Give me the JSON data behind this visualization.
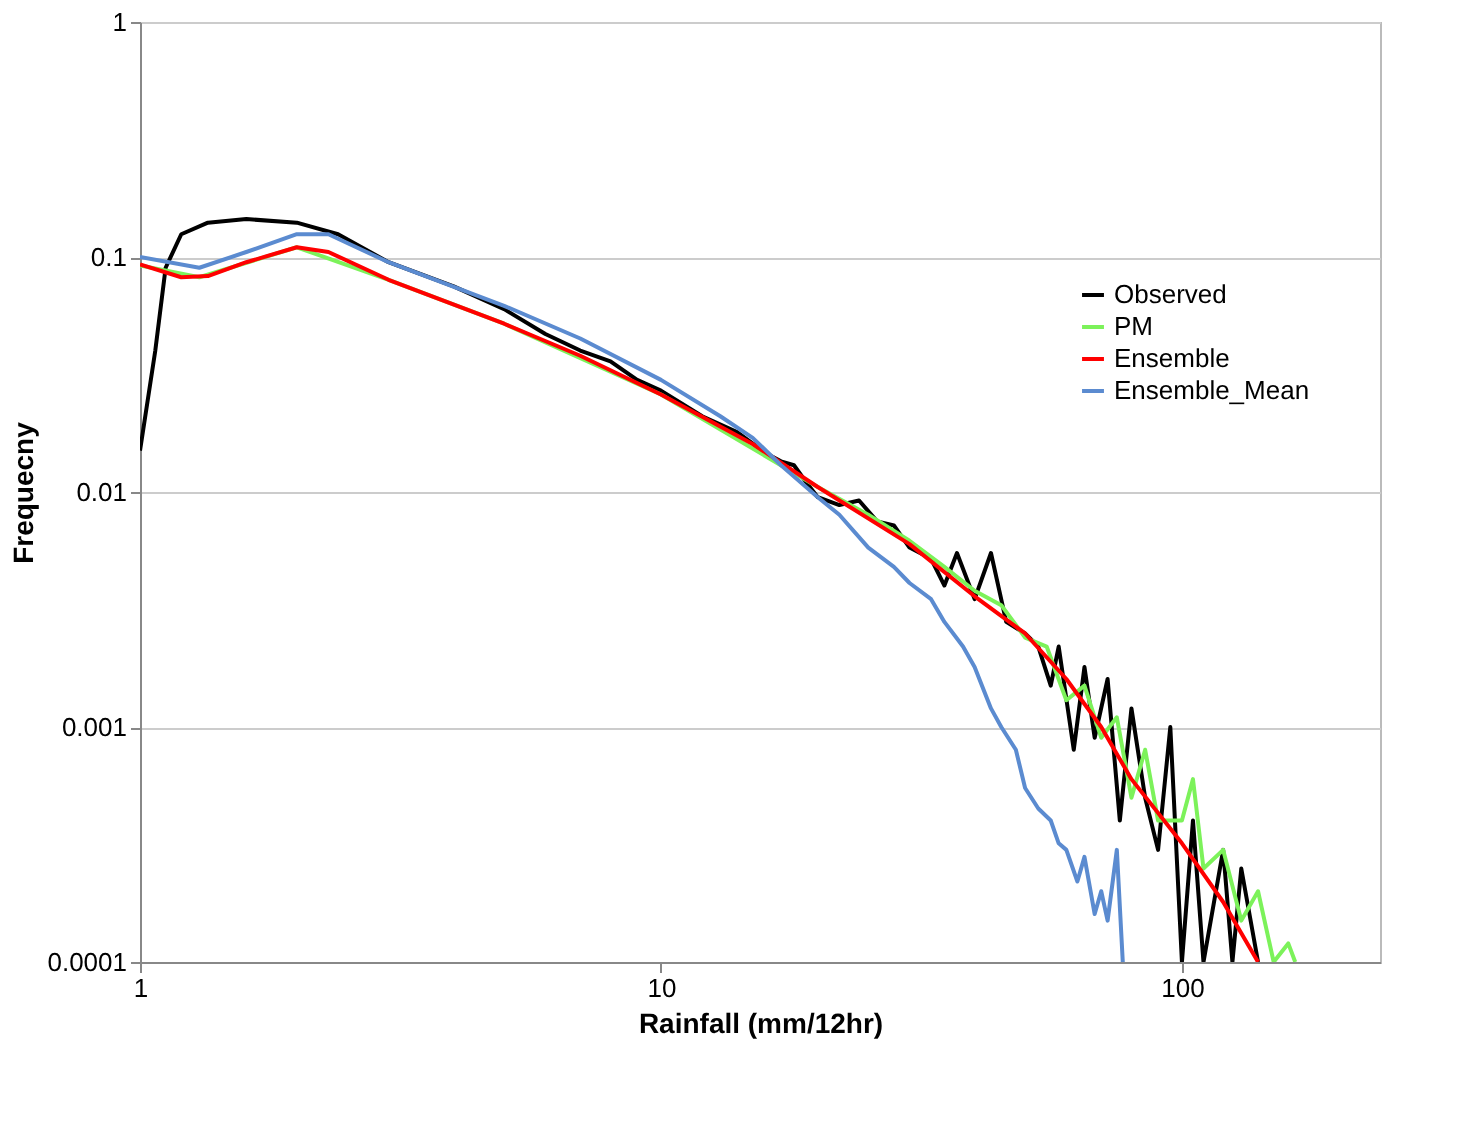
{
  "chart_data": {
    "type": "line",
    "xlabel": "Rainfall (mm/12hr)",
    "ylabel": "Frequecny",
    "log": "xy",
    "xlim": [
      1,
      240
    ],
    "xticks": [
      1,
      10,
      100
    ],
    "ylim": [
      0.0001,
      1
    ],
    "yticks": [
      0.0001,
      0.001,
      0.01,
      0.1,
      1
    ],
    "grid": "y",
    "legend": "right",
    "marker": "none",
    "line_style": "solid",
    "series": [
      {
        "name": "Observed",
        "color": "#000000",
        "x": [
          1,
          1.07,
          1.12,
          1.2,
          1.35,
          1.6,
          2,
          2.4,
          3,
          4,
          5,
          6,
          7,
          8,
          9,
          10,
          12,
          14,
          16,
          17,
          18,
          19,
          20,
          22,
          24,
          26,
          28,
          30,
          33,
          35,
          37,
          40,
          43,
          46,
          50,
          53,
          56,
          58,
          62,
          65,
          68,
          72,
          76,
          80,
          85,
          90,
          95,
          100,
          105,
          110,
          120,
          125,
          130,
          140
        ],
        "values": [
          0.015,
          0.04,
          0.09,
          0.125,
          0.14,
          0.145,
          0.14,
          0.125,
          0.095,
          0.075,
          0.06,
          0.047,
          0.04,
          0.036,
          0.03,
          0.027,
          0.021,
          0.018,
          0.0145,
          0.0135,
          0.013,
          0.011,
          0.0095,
          0.0088,
          0.0092,
          0.0075,
          0.0072,
          0.0058,
          0.0052,
          0.004,
          0.0055,
          0.0035,
          0.0055,
          0.0028,
          0.0025,
          0.0022,
          0.0015,
          0.0022,
          0.0008,
          0.0018,
          0.0009,
          0.0016,
          0.0004,
          0.0012,
          0.0005,
          0.0003,
          0.001,
          0.0001,
          0.0004,
          0.0001,
          0.0003,
          0.0001,
          0.00025,
          0.0001
        ]
      },
      {
        "name": "PM",
        "color": "#7cf25a",
        "x": [
          1,
          1.3,
          2,
          3,
          5,
          10,
          20,
          25,
          30,
          35,
          40,
          45,
          50,
          55,
          60,
          65,
          70,
          75,
          80,
          85,
          90,
          100,
          105,
          110,
          120,
          130,
          140,
          150,
          160,
          165
        ],
        "values": [
          0.092,
          0.082,
          0.11,
          0.08,
          0.052,
          0.026,
          0.0105,
          0.008,
          0.0062,
          0.0048,
          0.0038,
          0.0033,
          0.0024,
          0.0022,
          0.0013,
          0.0015,
          0.0009,
          0.0011,
          0.0005,
          0.0008,
          0.0004,
          0.0004,
          0.0006,
          0.00025,
          0.0003,
          0.00015,
          0.0002,
          0.0001,
          0.00012,
          0.0001
        ]
      },
      {
        "name": "Ensemble",
        "color": "#ff0000",
        "x": [
          1,
          1.2,
          1.35,
          1.6,
          2,
          2.3,
          3,
          5,
          7,
          10,
          15,
          20,
          30,
          40,
          50,
          60,
          70,
          80,
          100,
          120,
          140
        ],
        "values": [
          0.093,
          0.082,
          0.083,
          0.095,
          0.11,
          0.105,
          0.08,
          0.052,
          0.038,
          0.026,
          0.016,
          0.0105,
          0.006,
          0.0036,
          0.0025,
          0.0016,
          0.001,
          0.0006,
          0.00032,
          0.00018,
          0.0001
        ]
      },
      {
        "name": "Ensemble_Mean",
        "color": "#5b8bd0",
        "x": [
          1,
          1.3,
          1.6,
          2,
          2.3,
          3,
          5,
          7,
          10,
          13,
          15,
          17,
          20,
          22,
          25,
          28,
          30,
          33,
          35,
          38,
          40,
          43,
          45,
          48,
          50,
          53,
          56,
          58,
          60,
          63,
          65,
          68,
          70,
          72,
          75,
          77
        ],
        "values": [
          0.1,
          0.09,
          0.105,
          0.125,
          0.125,
          0.095,
          0.062,
          0.045,
          0.03,
          0.021,
          0.017,
          0.013,
          0.0095,
          0.008,
          0.0058,
          0.0048,
          0.0041,
          0.0035,
          0.0028,
          0.0022,
          0.0018,
          0.0012,
          0.001,
          0.0008,
          0.00055,
          0.00045,
          0.0004,
          0.00032,
          0.0003,
          0.00022,
          0.00028,
          0.00016,
          0.0002,
          0.00015,
          0.0003,
          0.0001
        ]
      }
    ]
  }
}
